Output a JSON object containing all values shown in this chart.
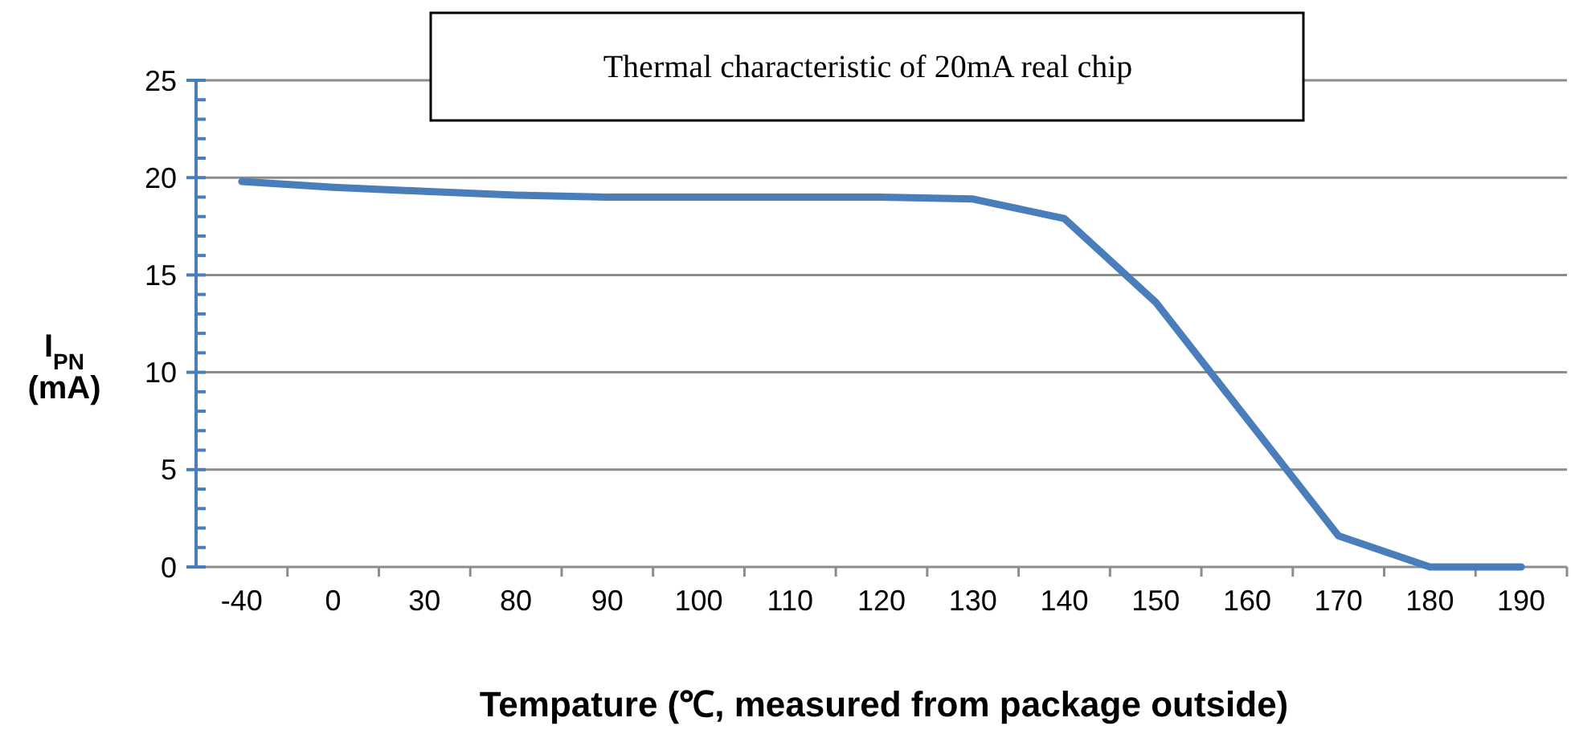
{
  "chart_data": {
    "type": "line",
    "title": "Thermal characteristic of 20mA real chip",
    "xlabel": "Tempature (℃, measured from package outside)",
    "ylabel": "I$_{PN}$ (mA)",
    "categories": [
      "-40",
      "0",
      "30",
      "80",
      "90",
      "100",
      "110",
      "120",
      "130",
      "140",
      "150",
      "160",
      "170",
      "180",
      "190"
    ],
    "series": [
      {
        "color": "#4a7ebb",
        "values": [
          19.8,
          19.5,
          19.3,
          19.1,
          19.0,
          19.0,
          19.0,
          19.0,
          18.9,
          17.9,
          13.6,
          7.6,
          1.6,
          0,
          0
        ]
      }
    ],
    "ylim": [
      0,
      25
    ],
    "yticks": [
      0,
      {
        "value": 1,
        "label": null
      },
      {
        "value": 2,
        "label": null
      },
      {
        "value": 3,
        "label": null
      },
      {
        "value": 4,
        "label": null
      },
      5,
      {
        "value": 6,
        "label": null
      },
      {
        "value": 7,
        "label": null
      },
      {
        "value": 8,
        "label": null
      },
      {
        "value": 9,
        "label": null
      },
      10,
      {
        "value": 11,
        "label": null
      },
      {
        "value": 12,
        "label": null
      },
      {
        "value": 13,
        "label": null
      },
      {
        "value": 14,
        "label": null
      },
      15,
      {
        "value": 16,
        "label": null
      },
      {
        "value": 17,
        "label": null
      },
      {
        "value": 18,
        "label": null
      },
      {
        "value": 19,
        "label": null
      },
      20,
      {
        "value": 21,
        "label": null
      },
      {
        "value": 22,
        "label": null
      },
      {
        "value": 23,
        "label": null
      },
      {
        "value": 24,
        "label": null
      },
      25
    ],
    "grid": "y",
    "marker": "none",
    "line_style": "solid"
  }
}
